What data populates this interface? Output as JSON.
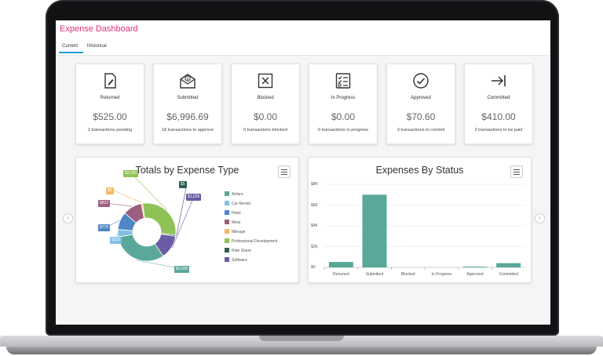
{
  "app": {
    "title": "Expense Dashboard"
  },
  "tabs": [
    {
      "label": "Current",
      "active": true
    },
    {
      "label": "Historical",
      "active": false
    }
  ],
  "colors": {
    "title_accent": "#e0317a",
    "tab_accent": "#1e9bd7",
    "bar": "#5aa89a"
  },
  "cards": [
    {
      "label": "Returned",
      "amount": "$525.00",
      "sub": "2 transactions pending",
      "icon": "edit-document-icon"
    },
    {
      "label": "Submitted",
      "amount": "$6,996.69",
      "sub": "18 transactions to approve",
      "icon": "money-envelope-icon"
    },
    {
      "label": "Blocked",
      "amount": "$0.00",
      "sub": "0 transactions blocked",
      "icon": "blocked-x-icon"
    },
    {
      "label": "In Progress",
      "amount": "$0.00",
      "sub": "0 transactions in progress",
      "icon": "checklist-icon"
    },
    {
      "label": "Approved",
      "amount": "$70.60",
      "sub": "3 transactions to commit",
      "icon": "check-circle-icon"
    },
    {
      "label": "Committed",
      "amount": "$410.00",
      "sub": "2 transactions to be paid",
      "icon": "arrow-to-bar-icon"
    }
  ],
  "chart_data": [
    {
      "type": "pie",
      "title": "Totals by Expense Type",
      "legend_position": "right",
      "categories": [
        "Airfare",
        "Car Rental",
        "Hotel",
        "Meal",
        "Mileage",
        "Professional Development",
        "Ride Share",
        "Software"
      ],
      "colors": [
        "#5aa89a",
        "#7ec0e2",
        "#4f86c6",
        "#9c5d7e",
        "#f3b95f",
        "#8fc256",
        "#2f5d57",
        "#6b5ca5"
      ],
      "values": [
        2600,
        325,
        770,
        822,
        6,
        2250,
        5,
        1025
      ],
      "data_labels": [
        "$2,600",
        "$325",
        "$770",
        "$822",
        "$6",
        "$2,250",
        "$5",
        "$1,025"
      ]
    },
    {
      "type": "bar",
      "title": "Expenses By Status",
      "categories": [
        "Returned",
        "Submitted",
        "Blocked",
        "In Progress",
        "Approved",
        "Committed"
      ],
      "values": [
        525,
        6996.69,
        0,
        0,
        70.6,
        410
      ],
      "ylim": [
        0,
        8000
      ],
      "yticks": [
        "$0",
        "$2K",
        "$4K",
        "$6K",
        "$8K"
      ],
      "grid": true
    }
  ]
}
